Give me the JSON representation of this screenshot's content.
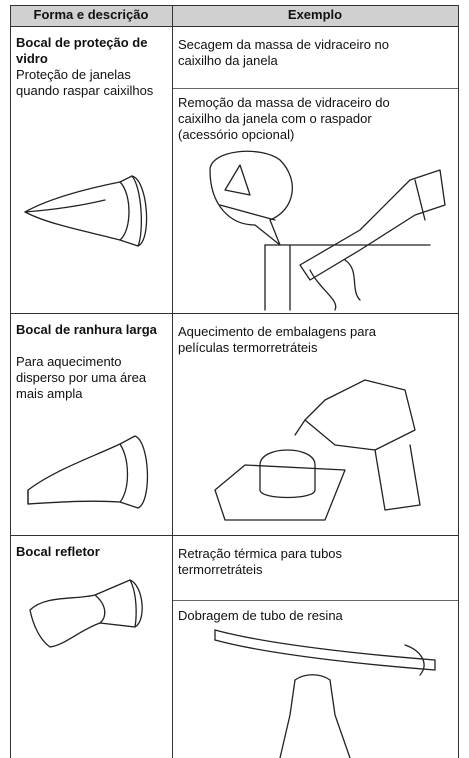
{
  "table": {
    "header": [
      "Forma e descrição",
      "Exemplo"
    ],
    "rows": [
      {
        "name": "Bocal de proteção de vidro",
        "description": "Proteção de janelas quando raspar caixilhos",
        "examples": [
          "Secagem da massa de vidraceiro no caixilho da janela",
          "Remoção da massa de vidraceiro do caixilho da janela com o raspador (acessório opcional)"
        ]
      },
      {
        "name": "Bocal de ranhura larga",
        "description": "Para aquecimento disperso por uma área mais ampla",
        "examples": [
          "Aquecimento de embalagens para películas termorretráteis"
        ]
      },
      {
        "name": "Bocal refletor",
        "description": "",
        "examples": [
          "Retração térmica para tubos termorretráteis",
          "Dobragem de tubo de resina"
        ]
      }
    ]
  }
}
